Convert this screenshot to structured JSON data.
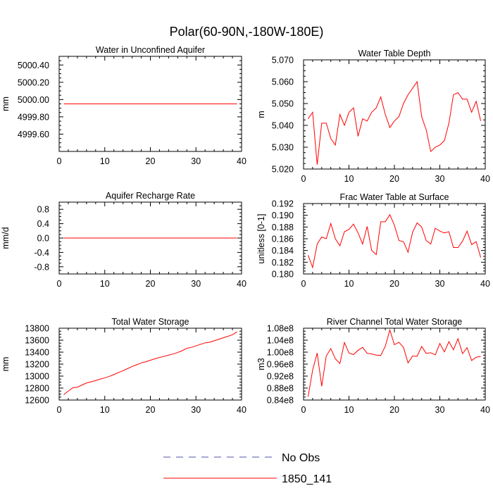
{
  "figure": {
    "title": "Polar(60-90N,-180W-180E)"
  },
  "legend": {
    "items": [
      {
        "label": "No Obs",
        "color": "#5050b0",
        "dash": "dashed"
      },
      {
        "label": "1850_141",
        "color": "#ff0000",
        "dash": "solid"
      }
    ]
  },
  "colors": {
    "series": "#ff0000",
    "axis": "#000000"
  },
  "chart_data": [
    {
      "type": "line",
      "title": "Water in Unconfined Aquifer",
      "ylabel": "mm",
      "xlim": [
        0,
        40
      ],
      "ylim": [
        4999.4,
        5000.5
      ],
      "xticks": [
        0,
        10,
        20,
        30,
        40
      ],
      "xtick_labels": [
        "0",
        "10",
        "20",
        "30",
        "40"
      ],
      "yticks": [
        4999.6,
        4999.8,
        5000.0,
        5000.2,
        5000.4
      ],
      "ytick_labels": [
        "4999.60",
        "4999.80",
        "5000.00",
        "5000.20",
        "5000.40"
      ],
      "x": [
        1,
        39
      ],
      "series": [
        {
          "values": [
            4999.95,
            4999.95
          ]
        }
      ]
    },
    {
      "type": "line",
      "title": "Water Table Depth",
      "ylabel": "m",
      "xlim": [
        0,
        40
      ],
      "ylim": [
        5.02,
        5.07
      ],
      "xticks": [
        0,
        10,
        20,
        30,
        40
      ],
      "xtick_labels": [
        "0",
        "10",
        "20",
        "30",
        "40"
      ],
      "yticks": [
        5.02,
        5.03,
        5.04,
        5.05,
        5.06,
        5.07
      ],
      "ytick_labels": [
        "5.020",
        "5.030",
        "5.040",
        "5.050",
        "5.060",
        "5.070"
      ],
      "x": [
        1,
        2,
        3,
        4,
        5,
        6,
        7,
        8,
        9,
        10,
        11,
        12,
        13,
        14,
        15,
        16,
        17,
        18,
        19,
        20,
        21,
        22,
        23,
        24,
        25,
        26,
        27,
        28,
        29,
        30,
        31,
        32,
        33,
        34,
        35,
        36,
        37,
        38,
        39
      ],
      "series": [
        {
          "values": [
            5.043,
            5.046,
            5.022,
            5.041,
            5.041,
            5.034,
            5.031,
            5.045,
            5.04,
            5.046,
            5.048,
            5.035,
            5.043,
            5.042,
            5.046,
            5.048,
            5.053,
            5.045,
            5.039,
            5.042,
            5.044,
            5.05,
            5.054,
            5.057,
            5.06,
            5.044,
            5.038,
            5.028,
            5.03,
            5.031,
            5.033,
            5.041,
            5.054,
            5.055,
            5.052,
            5.052,
            5.046,
            5.051,
            5.042
          ]
        }
      ]
    },
    {
      "type": "line",
      "title": "Aquifer Recharge Rate",
      "ylabel": "mm/d",
      "xlim": [
        0,
        40
      ],
      "ylim": [
        -1.0,
        1.0
      ],
      "xticks": [
        0,
        10,
        20,
        30,
        40
      ],
      "xtick_labels": [
        "0",
        "10",
        "20",
        "30",
        "40"
      ],
      "yticks": [
        -0.8,
        -0.4,
        0.0,
        0.4,
        0.8
      ],
      "ytick_labels": [
        "-0.8",
        "-0.4",
        "0.0",
        "0.4",
        "0.8"
      ],
      "x": [
        1,
        39
      ],
      "series": [
        {
          "values": [
            0.0,
            0.0
          ]
        }
      ]
    },
    {
      "type": "line",
      "title": "Frac Water Table at Surface",
      "ylabel": "unitless [0-1]",
      "xlim": [
        0,
        40
      ],
      "ylim": [
        0.18,
        0.192
      ],
      "xticks": [
        0,
        10,
        20,
        30,
        40
      ],
      "xtick_labels": [
        "0",
        "10",
        "20",
        "30",
        "40"
      ],
      "yticks": [
        0.18,
        0.182,
        0.184,
        0.186,
        0.188,
        0.19,
        0.192
      ],
      "ytick_labels": [
        "0.180",
        "0.182",
        "0.184",
        "0.186",
        "0.188",
        "0.190",
        "0.192"
      ],
      "x": [
        1,
        2,
        3,
        4,
        5,
        6,
        7,
        8,
        9,
        10,
        11,
        12,
        13,
        14,
        15,
        16,
        17,
        18,
        19,
        20,
        21,
        22,
        23,
        24,
        25,
        26,
        27,
        28,
        29,
        30,
        31,
        32,
        33,
        34,
        35,
        36,
        37,
        38,
        39
      ],
      "series": [
        {
          "values": [
            0.1832,
            0.1811,
            0.1851,
            0.1863,
            0.186,
            0.1886,
            0.186,
            0.1848,
            0.1872,
            0.1876,
            0.1885,
            0.187,
            0.1851,
            0.1881,
            0.184,
            0.1833,
            0.1889,
            0.1889,
            0.1901,
            0.1883,
            0.1857,
            0.1855,
            0.1837,
            0.1871,
            0.1887,
            0.188,
            0.1857,
            0.1851,
            0.1878,
            0.1873,
            0.187,
            0.1872,
            0.1845,
            0.1845,
            0.1856,
            0.1873,
            0.185,
            0.1855,
            0.1828
          ]
        }
      ]
    },
    {
      "type": "line",
      "title": "Total Water Storage",
      "ylabel": "mm",
      "xlim": [
        0,
        40
      ],
      "ylim": [
        12600,
        13800
      ],
      "xticks": [
        0,
        10,
        20,
        30,
        40
      ],
      "xtick_labels": [
        "0",
        "10",
        "20",
        "30",
        "40"
      ],
      "yticks": [
        12600,
        12800,
        13000,
        13200,
        13400,
        13600,
        13800
      ],
      "ytick_labels": [
        "12600",
        "12800",
        "13000",
        "13200",
        "13400",
        "13600",
        "13800"
      ],
      "x": [
        1,
        2,
        3,
        4,
        5,
        6,
        7,
        8,
        9,
        10,
        11,
        12,
        13,
        14,
        15,
        16,
        17,
        18,
        19,
        20,
        21,
        22,
        23,
        24,
        25,
        26,
        27,
        28,
        29,
        30,
        31,
        32,
        33,
        34,
        35,
        36,
        37,
        38,
        39
      ],
      "series": [
        {
          "values": [
            12690,
            12750,
            12805,
            12815,
            12850,
            12885,
            12905,
            12925,
            12950,
            12970,
            12995,
            13025,
            13060,
            13090,
            13125,
            13160,
            13190,
            13220,
            13240,
            13265,
            13290,
            13310,
            13330,
            13350,
            13370,
            13395,
            13425,
            13465,
            13480,
            13505,
            13530,
            13555,
            13565,
            13590,
            13615,
            13640,
            13665,
            13690,
            13740
          ]
        }
      ]
    },
    {
      "type": "line",
      "title": "River Channel Total Water Storage",
      "ylabel": "m3",
      "xlim": [
        0,
        40
      ],
      "ylim": [
        84000000.0,
        108000000.0
      ],
      "xticks": [
        0,
        10,
        20,
        30,
        40
      ],
      "xtick_labels": [
        "0",
        "10",
        "20",
        "30",
        "40"
      ],
      "yticks": [
        84000000.0,
        88000000.0,
        92000000.0,
        96000000.0,
        100000000.0,
        104000000.0,
        108000000.0
      ],
      "ytick_labels": [
        "0.84e8",
        "0.88e8",
        "0.92e8",
        "0.96e8",
        "1.00e8",
        "1.04e8",
        "1.08e8"
      ],
      "x": [
        1,
        2,
        3,
        4,
        5,
        6,
        7,
        8,
        9,
        10,
        11,
        12,
        13,
        14,
        15,
        16,
        17,
        18,
        19,
        20,
        21,
        22,
        23,
        24,
        25,
        26,
        27,
        28,
        29,
        30,
        31,
        32,
        33,
        34,
        35,
        36,
        37,
        38,
        39
      ],
      "series": [
        {
          "values": [
            85100000.0,
            94000000.0,
            99700000.0,
            88600000.0,
            98700000.0,
            101200000.0,
            97800000.0,
            96200000.0,
            103200000.0,
            99700000.0,
            99200000.0,
            100600000.0,
            101600000.0,
            99600000.0,
            99400000.0,
            99000000.0,
            98900000.0,
            102000000.0,
            107400000.0,
            102500000.0,
            103300000.0,
            101600000.0,
            96400000.0,
            98700000.0,
            98600000.0,
            101900000.0,
            99600000.0,
            99800000.0,
            99100000.0,
            102900000.0,
            100100000.0,
            103500000.0,
            100800000.0,
            104500000.0,
            99500000.0,
            101500000.0,
            97200000.0,
            98300000.0,
            98600000.0
          ]
        }
      ]
    }
  ]
}
